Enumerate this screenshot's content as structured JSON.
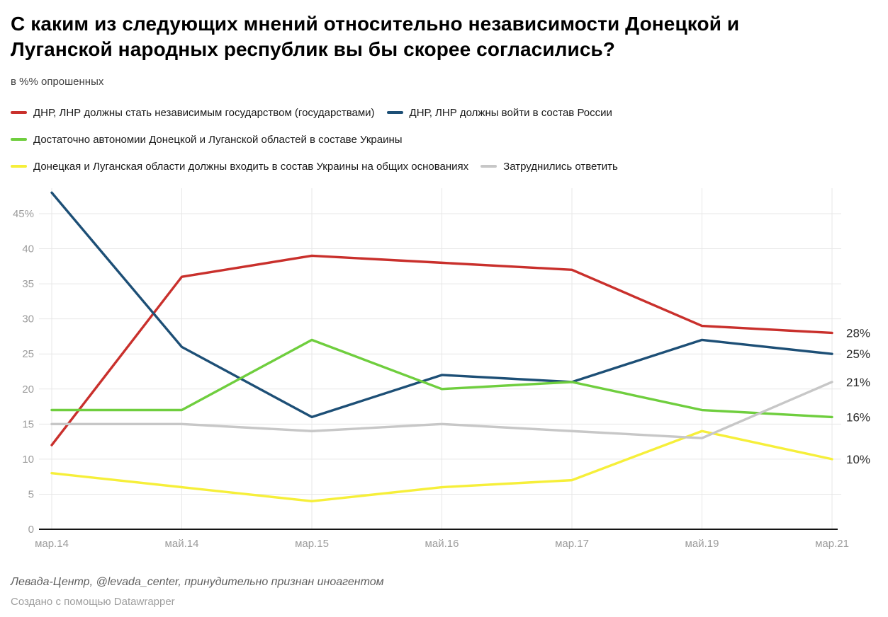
{
  "header": {
    "title_line1": "С каким из следующих мнений относительно независимости Донецкой и",
    "title_line2": "Луганской народных республик вы бы скорее согласились?",
    "subtitle": "в %% опрошенных"
  },
  "legend": {
    "rows": [
      [
        0,
        1
      ],
      [
        2
      ],
      [
        3,
        4
      ]
    ]
  },
  "chart_data": {
    "type": "line",
    "title": "С каким из следующих мнений относительно независимости Донецкой и Луганской народных республик вы бы скорее согласились?",
    "ylabel": "в %% опрошенных",
    "x": [
      "мар.14",
      "май.14",
      "мар.15",
      "май.16",
      "мар.17",
      "май.19",
      "мар.21"
    ],
    "series": [
      {
        "name": "ДНР, ЛНР должны стать независимым государством (государствами)",
        "color": "#c9302c",
        "values": [
          12,
          36,
          39,
          38,
          37,
          29,
          28
        ],
        "end_label": "28%"
      },
      {
        "name": "ДНР, ЛНР должны войти в состав России",
        "color": "#1d4f76",
        "values": [
          48,
          26,
          16,
          22,
          21,
          27,
          25
        ],
        "end_label": "25%"
      },
      {
        "name": "Достаточно автономии Донецкой и Луганской областей в составе Украины",
        "color": "#6fce3e",
        "values": [
          17,
          17,
          27,
          20,
          21,
          17,
          16
        ],
        "end_label": "16%"
      },
      {
        "name": "Донецкая и Луганская области должны входить в состав Украины на общих основаниях",
        "color": "#f6ef3a",
        "values": [
          8,
          6,
          4,
          6,
          7,
          14,
          10
        ],
        "end_label": "10%"
      },
      {
        "name": "Затруднились ответить",
        "color": "#c7c7c7",
        "values": [
          15,
          15,
          14,
          15,
          14,
          13,
          21
        ],
        "end_label": "21%"
      }
    ],
    "ylim": [
      0,
      48.5
    ],
    "y_ticks": [
      0,
      5,
      10,
      15,
      20,
      25,
      30,
      35,
      40,
      45
    ],
    "y_tick_suffix_value": 45,
    "y_tick_suffix": "%",
    "grid": true,
    "legend_position": "top",
    "colors": {
      "grid": "#e7e7e7",
      "axis": "#141414",
      "tick_label": "#9c9c9c",
      "end_label": "#2b2b2b"
    }
  },
  "footer": {
    "source": "Левада-Центр, @levada_center, принудительно признан иноагентом",
    "credit": "Создано с помощью Datawrapper"
  }
}
